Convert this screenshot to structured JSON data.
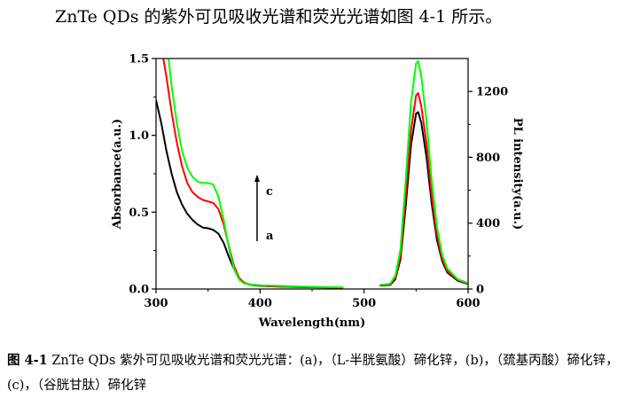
{
  "intro_text": "ZnTe QDs 的紫外可见吸收光谱和荧光光谱如图 4-1 所示。",
  "caption": {
    "label": "图 4-1",
    "text": "ZnTe QDs 紫外可见吸收光谱和荧光光谱：(a)，（L-半胱氨酸）碲化锌，(b)，（巯基丙酸）碲化锌，(c)，（谷胱甘肽）碲化锌"
  },
  "chart_data": {
    "type": "line",
    "xlabel": "Wavelength(nm)",
    "ylabel_left": "Absorbance(a.u.)",
    "ylabel_right": "PL intensity(a.u.)",
    "xlim": [
      300,
      600
    ],
    "ylim_left": [
      0,
      1.5
    ],
    "ylim_right": [
      0,
      1400
    ],
    "x_ticks": [
      "300",
      "400",
      "500",
      "600"
    ],
    "y_ticks_left": [
      "0.0",
      "0.5",
      "1.0",
      "1.5"
    ],
    "y_ticks_right": [
      "0",
      "400",
      "800",
      "1200"
    ],
    "arrow_labels": {
      "start": "a",
      "end": "c"
    },
    "colors": {
      "a": "#000000",
      "b": "#ff0000",
      "c": "#00ff00"
    },
    "series": [
      {
        "key": "a",
        "axis": "left",
        "x": [
          300,
          305,
          310,
          315,
          320,
          325,
          330,
          335,
          340,
          345,
          350,
          355,
          360,
          365,
          370,
          375,
          380,
          385,
          390,
          400,
          420,
          440,
          460,
          480
        ],
        "y": [
          1.23,
          1.08,
          0.9,
          0.75,
          0.63,
          0.55,
          0.49,
          0.45,
          0.42,
          0.4,
          0.395,
          0.385,
          0.36,
          0.3,
          0.21,
          0.13,
          0.07,
          0.04,
          0.028,
          0.02,
          0.015,
          0.012,
          0.01,
          0.008
        ]
      },
      {
        "key": "b",
        "axis": "left",
        "x": [
          307,
          310,
          315,
          320,
          325,
          330,
          335,
          340,
          345,
          350,
          355,
          360,
          365,
          370,
          375,
          380,
          385,
          390,
          400,
          420,
          440,
          460,
          480
        ],
        "y": [
          1.5,
          1.38,
          1.15,
          0.95,
          0.8,
          0.69,
          0.63,
          0.6,
          0.58,
          0.57,
          0.56,
          0.52,
          0.42,
          0.28,
          0.15,
          0.07,
          0.04,
          0.03,
          0.022,
          0.016,
          0.013,
          0.011,
          0.009
        ]
      },
      {
        "key": "c",
        "axis": "left",
        "x": [
          312,
          315,
          320,
          325,
          330,
          335,
          340,
          345,
          350,
          355,
          360,
          365,
          370,
          375,
          380,
          385,
          390,
          400,
          420,
          440,
          460,
          480
        ],
        "y": [
          1.5,
          1.32,
          1.08,
          0.9,
          0.79,
          0.73,
          0.7,
          0.69,
          0.69,
          0.68,
          0.6,
          0.45,
          0.27,
          0.13,
          0.06,
          0.035,
          0.03,
          0.025,
          0.02,
          0.016,
          0.013,
          0.011
        ]
      },
      {
        "key": "a",
        "axis": "right",
        "x": [
          515,
          525,
          530,
          535,
          540,
          545,
          550,
          552,
          555,
          560,
          565,
          570,
          575,
          580,
          590,
          600
        ],
        "y": [
          20,
          25,
          60,
          180,
          500,
          870,
          1065,
          1075,
          1010,
          800,
          520,
          300,
          170,
          100,
          50,
          30
        ]
      },
      {
        "key": "b",
        "axis": "right",
        "x": [
          515,
          525,
          530,
          535,
          540,
          545,
          550,
          552,
          555,
          560,
          565,
          570,
          575,
          580,
          590,
          600
        ],
        "y": [
          22,
          28,
          70,
          200,
          560,
          960,
          1175,
          1190,
          1110,
          880,
          570,
          330,
          185,
          110,
          55,
          32
        ]
      },
      {
        "key": "c",
        "axis": "right",
        "x": [
          515,
          525,
          530,
          535,
          540,
          545,
          550,
          552,
          555,
          560,
          565,
          570,
          575,
          580,
          590,
          600
        ],
        "y": [
          25,
          32,
          80,
          240,
          660,
          1130,
          1370,
          1385,
          1290,
          1020,
          660,
          380,
          210,
          125,
          60,
          35
        ]
      }
    ]
  }
}
